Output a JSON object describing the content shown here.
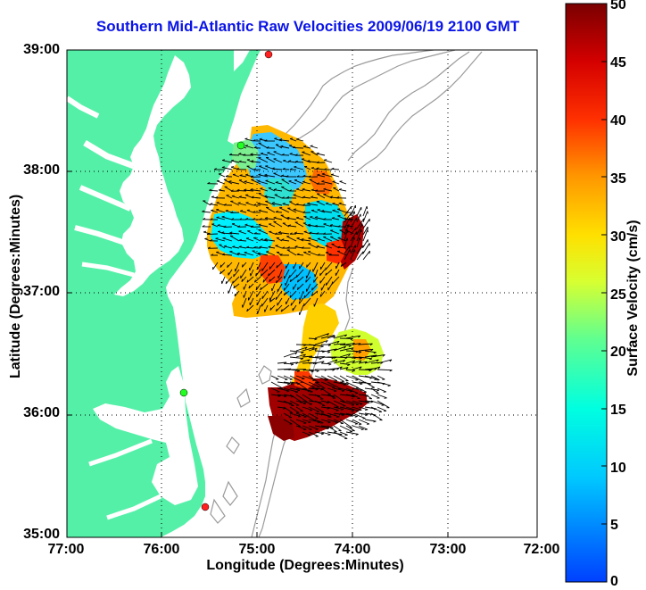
{
  "title": "Southern Mid-Atlantic Raw Velocities 2009/06/19 2100 GMT",
  "axes": {
    "ylabel": "Latitude (Degrees:Minutes)",
    "xlabel": "Longitude (Degrees:Minutes)",
    "yticks": [
      "39:00",
      "38:00",
      "37:00",
      "36:00",
      "35:00"
    ],
    "xticks": [
      "77:00",
      "76:00",
      "75:00",
      "74:00",
      "73:00",
      "72:00"
    ]
  },
  "colorbar": {
    "label": "Surface Velocity (cm/s)",
    "ticks": [
      "50",
      "45",
      "40",
      "35",
      "30",
      "25",
      "20",
      "15",
      "10",
      "5",
      "0"
    ],
    "min": 0,
    "max": 50
  },
  "map": {
    "grid": "dotted",
    "land_color": "#55f0a8",
    "bathymetry_color": "#9a9a9a",
    "lat_range": [
      35,
      39
    ],
    "lon_range": [
      77,
      72
    ],
    "station_markers": [
      "red",
      "green",
      "green",
      "red"
    ]
  }
}
